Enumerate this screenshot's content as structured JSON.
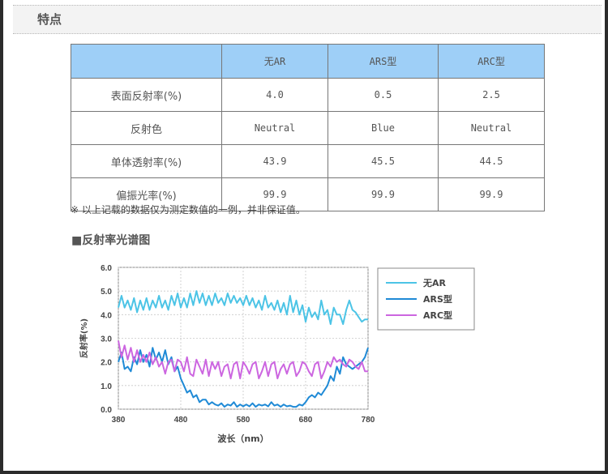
{
  "section": {
    "title": "特点"
  },
  "table": {
    "header": [
      "",
      "无AR",
      "ARS型",
      "ARC型"
    ],
    "rows": [
      [
        "表面反射率(%)",
        "4.0",
        "0.5",
        "2.5"
      ],
      [
        "反射色",
        "Neutral",
        "Blue",
        "Neutral"
      ],
      [
        "单体透射率(%)",
        "43.9",
        "45.5",
        "44.5"
      ],
      [
        "偏振光率(%)",
        "99.9",
        "99.9",
        "99.9"
      ]
    ]
  },
  "note": "※ 以上记载的数据仅为测定数值的一例，并非保证值。",
  "chart_section": {
    "square": "■",
    "title": "反射率光谱图"
  },
  "chart_data": {
    "type": "line",
    "title": "",
    "xlabel": "波长（nm）",
    "ylabel": "反射率(%)",
    "xlim": [
      380,
      780
    ],
    "ylim": [
      0.0,
      6.0
    ],
    "xticks": [
      "380",
      "480",
      "580",
      "680",
      "780"
    ],
    "yticks": [
      "0.0",
      "1.0",
      "2.0",
      "3.0",
      "4.0",
      "5.0",
      "6.0"
    ],
    "grid": true,
    "legend_position": "right",
    "x": [
      380,
      385,
      390,
      395,
      400,
      405,
      410,
      415,
      420,
      425,
      430,
      435,
      440,
      445,
      450,
      455,
      460,
      465,
      470,
      475,
      480,
      485,
      490,
      495,
      500,
      505,
      510,
      515,
      520,
      525,
      530,
      535,
      540,
      545,
      550,
      555,
      560,
      565,
      570,
      575,
      580,
      585,
      590,
      595,
      600,
      605,
      610,
      615,
      620,
      625,
      630,
      635,
      640,
      645,
      650,
      655,
      660,
      665,
      670,
      675,
      680,
      685,
      690,
      695,
      700,
      705,
      710,
      715,
      720,
      725,
      730,
      735,
      740,
      745,
      750,
      755,
      760,
      765,
      770,
      775,
      780
    ],
    "series": [
      {
        "name": "无AR",
        "color": "#4cc4e6",
        "values": [
          4.3,
          4.8,
          4.3,
          4.6,
          4.2,
          4.7,
          4.1,
          4.6,
          4.2,
          4.7,
          4.2,
          4.6,
          4.3,
          4.8,
          4.3,
          4.6,
          4.2,
          4.8,
          4.4,
          4.9,
          4.3,
          4.7,
          4.3,
          4.9,
          4.4,
          5.0,
          4.5,
          4.9,
          4.4,
          4.8,
          4.4,
          4.9,
          4.5,
          4.7,
          4.4,
          4.9,
          4.5,
          4.8,
          4.5,
          4.7,
          4.4,
          4.8,
          4.4,
          4.7,
          4.3,
          4.6,
          4.2,
          4.8,
          4.3,
          4.5,
          4.2,
          4.6,
          4.1,
          4.5,
          4.0,
          4.8,
          4.1,
          4.6,
          4.0,
          4.4,
          3.7,
          4.3,
          3.9,
          4.1,
          3.8,
          4.6,
          4.0,
          4.2,
          3.6,
          4.3,
          4.0,
          4.0,
          3.6,
          4.2,
          4.6,
          4.2,
          4.1,
          3.9,
          3.7,
          3.8,
          3.8
        ]
      },
      {
        "name": "ARS型",
        "color": "#1f8ad6",
        "values": [
          2.0,
          2.4,
          1.7,
          1.8,
          1.6,
          2.2,
          1.9,
          2.5,
          2.0,
          2.3,
          1.8,
          2.6,
          2.1,
          2.4,
          2.0,
          2.5,
          1.9,
          2.2,
          1.6,
          1.8,
          1.3,
          1.0,
          0.7,
          0.8,
          0.5,
          0.6,
          0.3,
          0.4,
          0.4,
          0.2,
          0.3,
          0.2,
          0.15,
          0.25,
          0.1,
          0.2,
          0.15,
          0.3,
          0.1,
          0.2,
          0.12,
          0.2,
          0.12,
          0.25,
          0.1,
          0.2,
          0.15,
          0.2,
          0.12,
          0.3,
          0.15,
          0.2,
          0.1,
          0.2,
          0.12,
          0.15,
          0.1,
          0.1,
          0.2,
          0.15,
          0.3,
          0.5,
          0.6,
          0.5,
          0.7,
          0.6,
          0.8,
          1.0,
          1.4,
          1.2,
          1.8,
          1.5,
          2.2,
          1.9,
          1.8,
          1.7,
          1.8,
          1.9,
          2.0,
          2.2,
          2.6
        ]
      },
      {
        "name": "ARC型",
        "color": "#cc66e0",
        "values": [
          2.9,
          2.2,
          2.7,
          2.1,
          2.6,
          2.0,
          2.5,
          2.0,
          2.3,
          2.0,
          2.4,
          1.9,
          2.2,
          1.8,
          2.0,
          1.5,
          2.0,
          2.1,
          1.6,
          2.1,
          2.0,
          1.6,
          2.2,
          1.5,
          1.4,
          2.1,
          1.8,
          1.5,
          2.1,
          1.4,
          2.0,
          1.7,
          2.0,
          1.4,
          1.8,
          1.9,
          1.3,
          1.9,
          2.0,
          1.3,
          2.0,
          1.8,
          1.5,
          1.9,
          2.0,
          1.3,
          1.6,
          2.0,
          1.4,
          1.9,
          2.0,
          1.3,
          1.7,
          1.9,
          1.5,
          1.9,
          2.0,
          1.4,
          1.6,
          2.0,
          1.9,
          1.6,
          1.4,
          1.9,
          2.0,
          1.3,
          1.6,
          2.0,
          1.8,
          2.2,
          2.0,
          2.1,
          1.9,
          1.8,
          2.1,
          2.0,
          1.8,
          1.7,
          2.0,
          1.6,
          1.6
        ]
      }
    ]
  }
}
